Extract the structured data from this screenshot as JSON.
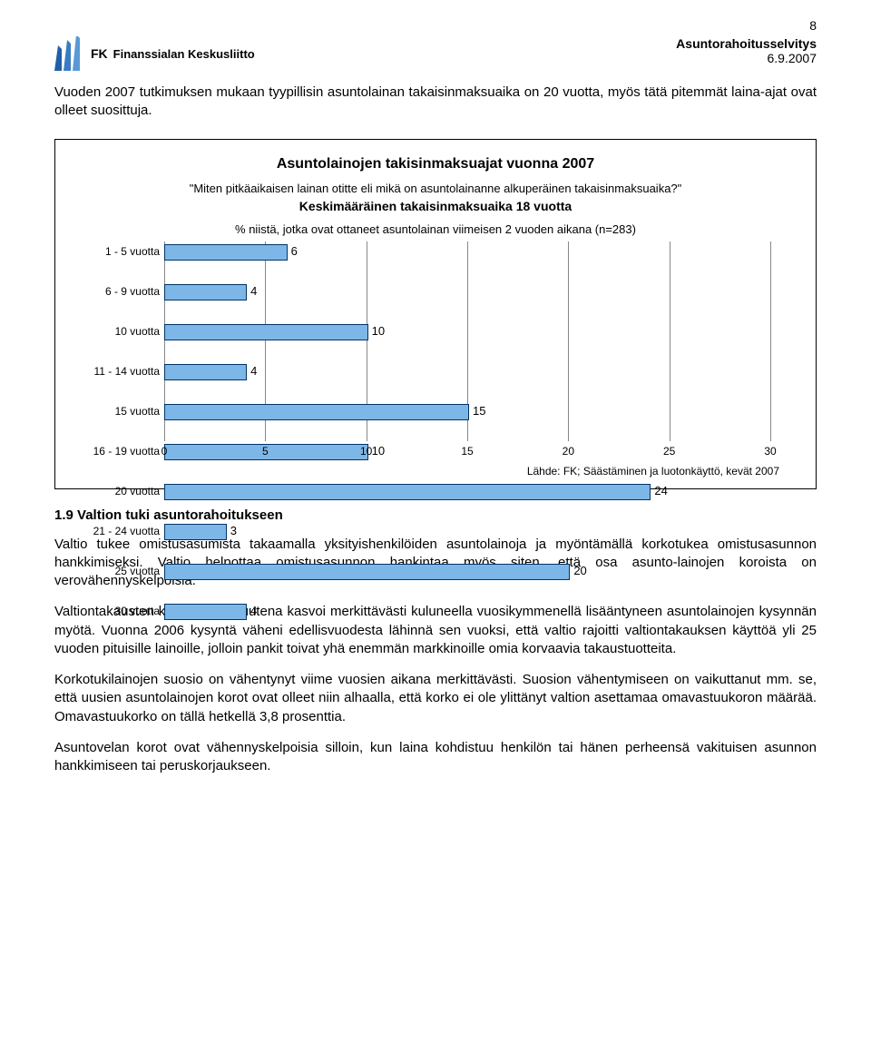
{
  "page_number": "8",
  "header": {
    "logo_text": "Finanssialan Keskusliitto",
    "doc_title": "Asuntorahoitusselvitys",
    "doc_date": "6.9.2007"
  },
  "intro_paragraph": "Vuoden 2007 tutkimuksen mukaan tyypillisin asuntolainan takaisinmaksuaika on 20 vuotta, myös tätä pitemmät laina-ajat ovat olleet suosittuja.",
  "chart": {
    "type": "bar",
    "title": "Asuntolainojen takisinmaksuajat vuonna 2007",
    "subtitle1": "\"Miten pitkäaikaisen lainan otitte eli mikä on asuntolainanne alkuperäinen takaisinmaksuaika?\"",
    "subtitle2": "Keskimääräinen takaisinmaksuaika 18 vuotta",
    "note": "% niistä, jotka ovat ottaneet asuntolainan viimeisen 2 vuoden aikana  (n=283)",
    "bar_color": "#7db7e8",
    "bar_border": "#003366",
    "grid_color": "#888888",
    "background_color": "#ffffff",
    "xlim": [
      0,
      30
    ],
    "xtick_step": 5,
    "categories": [
      "1 - 5 vuotta",
      "6 - 9 vuotta",
      "10 vuotta",
      "11 - 14 vuotta",
      "15 vuotta",
      "16 - 19 vuotta",
      "20 vuotta",
      "21 - 24 vuotta",
      "25 vuotta",
      "30 vuotta"
    ],
    "values": [
      6,
      4,
      10,
      4,
      15,
      10,
      24,
      3,
      20,
      4
    ],
    "xticks": [
      "0",
      "5",
      "10",
      "15",
      "20",
      "25",
      "30"
    ],
    "source": "Lähde: FK; Säästäminen ja luotonkäyttö, kevät 2007"
  },
  "section_heading": "1.9  Valtion tuki asuntorahoitukseen",
  "paragraphs": [
    "Valtio tukee omistusasumista takaamalla yksityishenkilöiden asuntolainoja ja myöntämällä korkotukea omistusasunnon hankkimiseksi. Valtio helpottaa omistusasunnon hankintaa myös siten, että osa asunto-lainojen koroista on verovähennyskelpoisia.",
    "Valtiontakausten käyttö lisävakuutena kasvoi merkittävästi kuluneella vuosikymmenellä lisääntyneen asuntolainojen kysynnän myötä. Vuonna 2006 kysyntä väheni edellisvuodesta lähinnä sen vuoksi, että valtio rajoitti valtiontakauksen käyttöä yli 25 vuoden pituisille lainoille, jolloin pankit toivat yhä enemmän markkinoille omia korvaavia takaustuotteita.",
    "Korkotukilainojen suosio on vähentynyt viime vuosien aikana merkittävästi. Suosion vähentymiseen on vaikuttanut mm. se, että uusien asuntolainojen korot ovat olleet niin alhaalla, että korko ei ole ylittänyt valtion asettamaa omavastuukoron määrää. Omavastuukorko on tällä hetkellä 3,8 prosenttia.",
    "Asuntovelan korot ovat vähennyskelpoisia silloin, kun laina kohdistuu henkilön tai hänen perheensä vakituisen asunnon hankkimiseen tai peruskorjaukseen."
  ]
}
